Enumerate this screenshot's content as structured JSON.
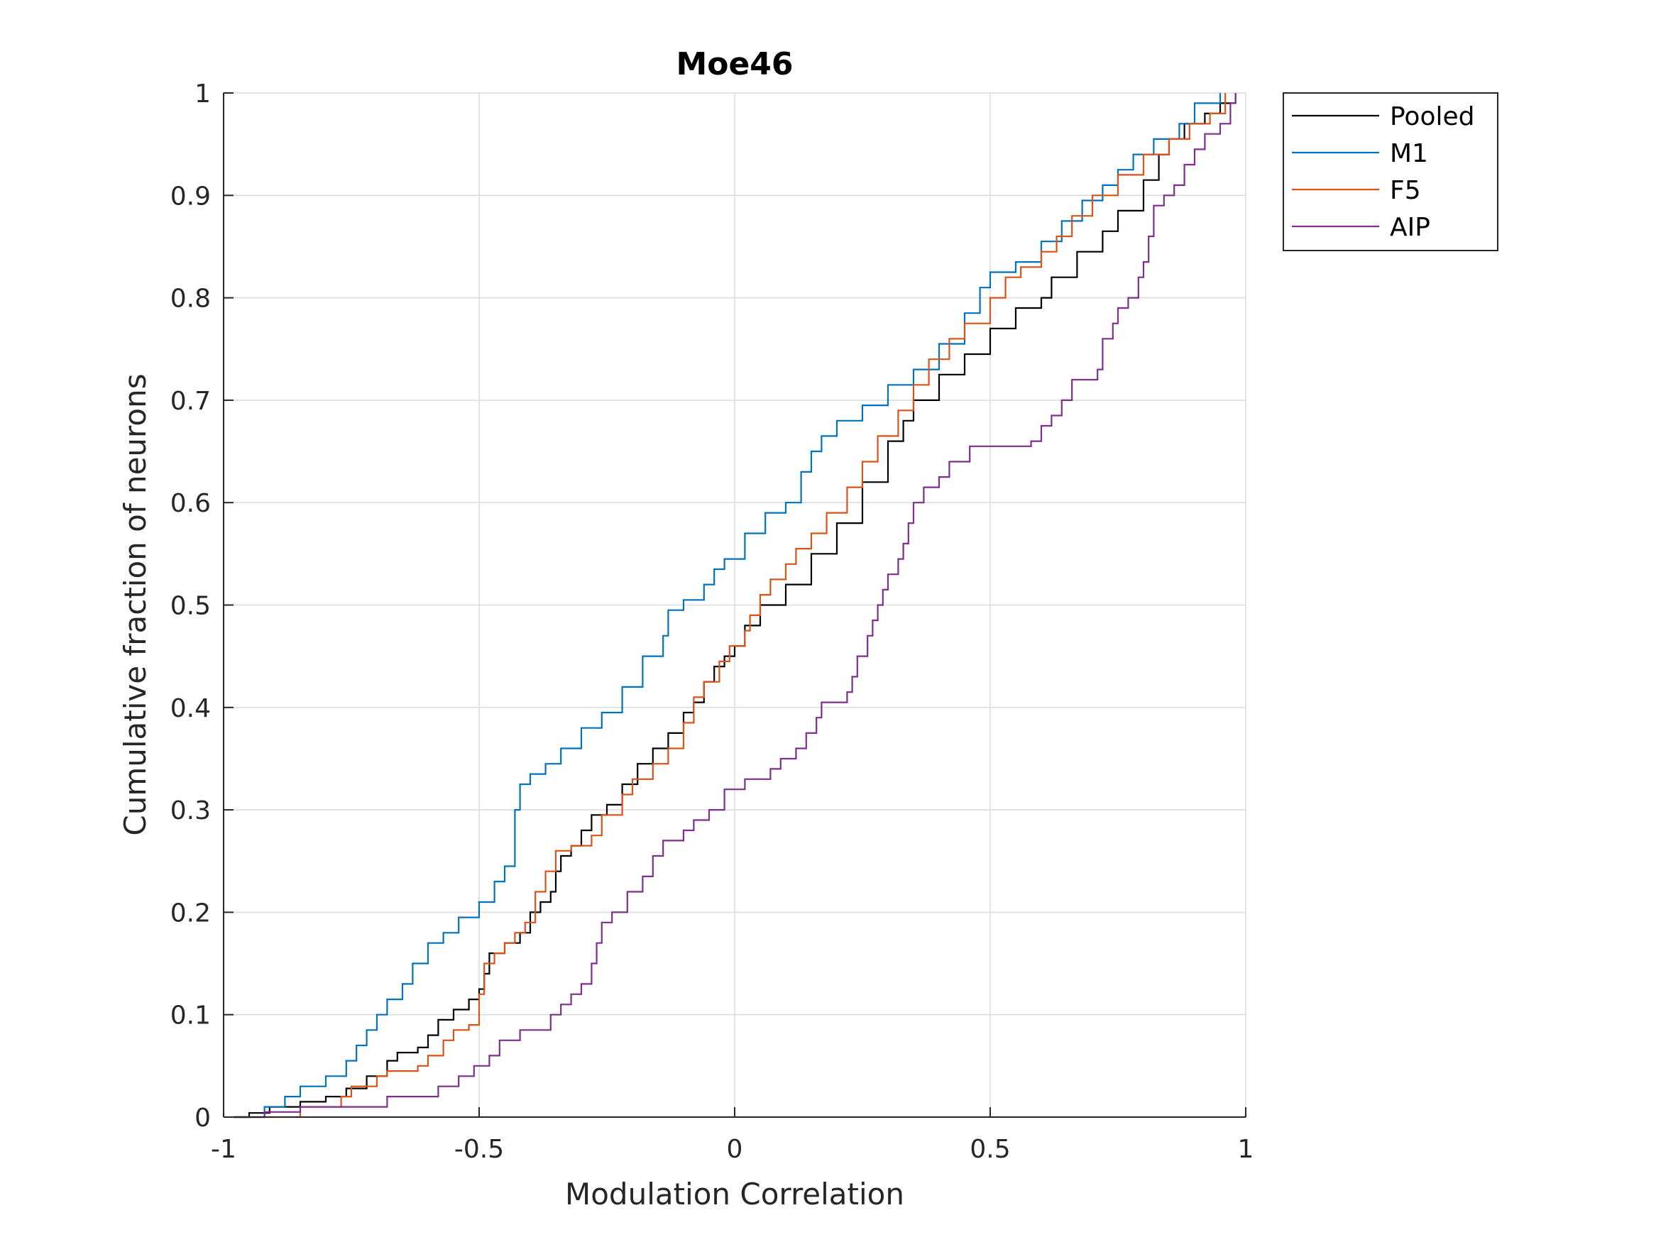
{
  "chart_data": {
    "type": "line",
    "step": true,
    "title": "Moe46",
    "xlabel": "Modulation Correlation",
    "ylabel": "Cumulative fraction of neurons",
    "xlim": [
      -1,
      1
    ],
    "ylim": [
      0,
      1
    ],
    "xticks": [
      "-1",
      "-0.5",
      "0",
      "0.5",
      "1"
    ],
    "yticks": [
      "0",
      "0.1",
      "0.2",
      "0.3",
      "0.4",
      "0.5",
      "0.6",
      "0.7",
      "0.8",
      "0.9",
      "1"
    ],
    "grid": true,
    "legend": "outside-top-right",
    "series": [
      {
        "name": "Pooled",
        "color": "#000000",
        "points": [
          [
            -0.98,
            0
          ],
          [
            -0.95,
            0.004
          ],
          [
            -0.91,
            0.01
          ],
          [
            -0.85,
            0.015
          ],
          [
            -0.8,
            0.02
          ],
          [
            -0.76,
            0.028
          ],
          [
            -0.72,
            0.04
          ],
          [
            -0.68,
            0.055
          ],
          [
            -0.66,
            0.063
          ],
          [
            -0.62,
            0.068
          ],
          [
            -0.6,
            0.08
          ],
          [
            -0.58,
            0.095
          ],
          [
            -0.55,
            0.105
          ],
          [
            -0.52,
            0.115
          ],
          [
            -0.5,
            0.125
          ],
          [
            -0.49,
            0.14
          ],
          [
            -0.48,
            0.16
          ],
          [
            -0.45,
            0.17
          ],
          [
            -0.42,
            0.18
          ],
          [
            -0.4,
            0.2
          ],
          [
            -0.38,
            0.21
          ],
          [
            -0.36,
            0.22
          ],
          [
            -0.35,
            0.24
          ],
          [
            -0.34,
            0.255
          ],
          [
            -0.32,
            0.265
          ],
          [
            -0.3,
            0.28
          ],
          [
            -0.28,
            0.295
          ],
          [
            -0.25,
            0.305
          ],
          [
            -0.22,
            0.325
          ],
          [
            -0.19,
            0.345
          ],
          [
            -0.16,
            0.36
          ],
          [
            -0.13,
            0.375
          ],
          [
            -0.1,
            0.395
          ],
          [
            -0.08,
            0.405
          ],
          [
            -0.06,
            0.425
          ],
          [
            -0.04,
            0.44
          ],
          [
            -0.02,
            0.45
          ],
          [
            0.0,
            0.46
          ],
          [
            0.02,
            0.48
          ],
          [
            0.05,
            0.5
          ],
          [
            0.1,
            0.52
          ],
          [
            0.15,
            0.55
          ],
          [
            0.2,
            0.58
          ],
          [
            0.25,
            0.62
          ],
          [
            0.3,
            0.66
          ],
          [
            0.33,
            0.68
          ],
          [
            0.35,
            0.7
          ],
          [
            0.4,
            0.725
          ],
          [
            0.45,
            0.745
          ],
          [
            0.5,
            0.77
          ],
          [
            0.55,
            0.79
          ],
          [
            0.6,
            0.8
          ],
          [
            0.62,
            0.82
          ],
          [
            0.67,
            0.845
          ],
          [
            0.72,
            0.865
          ],
          [
            0.75,
            0.885
          ],
          [
            0.8,
            0.915
          ],
          [
            0.83,
            0.94
          ],
          [
            0.85,
            0.955
          ],
          [
            0.88,
            0.97
          ],
          [
            0.92,
            0.98
          ],
          [
            0.95,
            0.99
          ],
          [
            0.98,
            1.0
          ]
        ]
      },
      {
        "name": "M1",
        "color": "#0072BD",
        "points": [
          [
            -0.98,
            0
          ],
          [
            -0.92,
            0.01
          ],
          [
            -0.88,
            0.02
          ],
          [
            -0.85,
            0.03
          ],
          [
            -0.8,
            0.04
          ],
          [
            -0.76,
            0.055
          ],
          [
            -0.74,
            0.07
          ],
          [
            -0.72,
            0.085
          ],
          [
            -0.7,
            0.1
          ],
          [
            -0.68,
            0.115
          ],
          [
            -0.65,
            0.13
          ],
          [
            -0.63,
            0.15
          ],
          [
            -0.6,
            0.17
          ],
          [
            -0.57,
            0.18
          ],
          [
            -0.54,
            0.195
          ],
          [
            -0.5,
            0.21
          ],
          [
            -0.47,
            0.23
          ],
          [
            -0.45,
            0.245
          ],
          [
            -0.43,
            0.3
          ],
          [
            -0.42,
            0.325
          ],
          [
            -0.4,
            0.335
          ],
          [
            -0.37,
            0.345
          ],
          [
            -0.34,
            0.36
          ],
          [
            -0.3,
            0.38
          ],
          [
            -0.26,
            0.395
          ],
          [
            -0.22,
            0.42
          ],
          [
            -0.18,
            0.45
          ],
          [
            -0.14,
            0.47
          ],
          [
            -0.13,
            0.495
          ],
          [
            -0.1,
            0.505
          ],
          [
            -0.06,
            0.52
          ],
          [
            -0.04,
            0.535
          ],
          [
            -0.02,
            0.545
          ],
          [
            0.02,
            0.57
          ],
          [
            0.06,
            0.59
          ],
          [
            0.1,
            0.6
          ],
          [
            0.13,
            0.63
          ],
          [
            0.15,
            0.65
          ],
          [
            0.17,
            0.665
          ],
          [
            0.2,
            0.68
          ],
          [
            0.25,
            0.695
          ],
          [
            0.3,
            0.715
          ],
          [
            0.35,
            0.73
          ],
          [
            0.4,
            0.755
          ],
          [
            0.45,
            0.785
          ],
          [
            0.48,
            0.81
          ],
          [
            0.5,
            0.825
          ],
          [
            0.55,
            0.835
          ],
          [
            0.6,
            0.855
          ],
          [
            0.64,
            0.875
          ],
          [
            0.68,
            0.895
          ],
          [
            0.72,
            0.91
          ],
          [
            0.75,
            0.925
          ],
          [
            0.78,
            0.94
          ],
          [
            0.82,
            0.955
          ],
          [
            0.87,
            0.97
          ],
          [
            0.9,
            0.99
          ],
          [
            0.95,
            1.0
          ]
        ]
      },
      {
        "name": "F5",
        "color": "#D95319",
        "points": [
          [
            -0.98,
            0
          ],
          [
            -0.85,
            0.01
          ],
          [
            -0.77,
            0.02
          ],
          [
            -0.75,
            0.03
          ],
          [
            -0.7,
            0.04
          ],
          [
            -0.68,
            0.045
          ],
          [
            -0.62,
            0.05
          ],
          [
            -0.6,
            0.06
          ],
          [
            -0.57,
            0.075
          ],
          [
            -0.55,
            0.085
          ],
          [
            -0.52,
            0.09
          ],
          [
            -0.5,
            0.12
          ],
          [
            -0.49,
            0.15
          ],
          [
            -0.47,
            0.16
          ],
          [
            -0.45,
            0.17
          ],
          [
            -0.43,
            0.18
          ],
          [
            -0.41,
            0.19
          ],
          [
            -0.39,
            0.22
          ],
          [
            -0.37,
            0.24
          ],
          [
            -0.35,
            0.26
          ],
          [
            -0.32,
            0.265
          ],
          [
            -0.28,
            0.275
          ],
          [
            -0.26,
            0.295
          ],
          [
            -0.22,
            0.315
          ],
          [
            -0.2,
            0.33
          ],
          [
            -0.16,
            0.345
          ],
          [
            -0.13,
            0.36
          ],
          [
            -0.1,
            0.385
          ],
          [
            -0.08,
            0.41
          ],
          [
            -0.06,
            0.425
          ],
          [
            -0.03,
            0.445
          ],
          [
            -0.01,
            0.46
          ],
          [
            0.02,
            0.475
          ],
          [
            0.03,
            0.49
          ],
          [
            0.05,
            0.51
          ],
          [
            0.07,
            0.525
          ],
          [
            0.1,
            0.54
          ],
          [
            0.12,
            0.555
          ],
          [
            0.15,
            0.57
          ],
          [
            0.18,
            0.59
          ],
          [
            0.22,
            0.615
          ],
          [
            0.25,
            0.64
          ],
          [
            0.28,
            0.665
          ],
          [
            0.32,
            0.69
          ],
          [
            0.35,
            0.715
          ],
          [
            0.38,
            0.74
          ],
          [
            0.42,
            0.76
          ],
          [
            0.45,
            0.775
          ],
          [
            0.5,
            0.8
          ],
          [
            0.53,
            0.82
          ],
          [
            0.56,
            0.83
          ],
          [
            0.6,
            0.845
          ],
          [
            0.63,
            0.86
          ],
          [
            0.66,
            0.88
          ],
          [
            0.7,
            0.9
          ],
          [
            0.75,
            0.92
          ],
          [
            0.8,
            0.94
          ],
          [
            0.85,
            0.955
          ],
          [
            0.89,
            0.97
          ],
          [
            0.93,
            0.98
          ],
          [
            0.96,
            1.0
          ]
        ]
      },
      {
        "name": "AIP",
        "color": "#7E2F8E",
        "points": [
          [
            -0.98,
            0
          ],
          [
            -0.92,
            0.005
          ],
          [
            -0.85,
            0.01
          ],
          [
            -0.7,
            0.01
          ],
          [
            -0.68,
            0.02
          ],
          [
            -0.6,
            0.02
          ],
          [
            -0.58,
            0.03
          ],
          [
            -0.54,
            0.04
          ],
          [
            -0.51,
            0.05
          ],
          [
            -0.48,
            0.06
          ],
          [
            -0.46,
            0.075
          ],
          [
            -0.42,
            0.085
          ],
          [
            -0.36,
            0.1
          ],
          [
            -0.34,
            0.11
          ],
          [
            -0.32,
            0.12
          ],
          [
            -0.3,
            0.13
          ],
          [
            -0.28,
            0.15
          ],
          [
            -0.27,
            0.17
          ],
          [
            -0.26,
            0.19
          ],
          [
            -0.24,
            0.2
          ],
          [
            -0.21,
            0.22
          ],
          [
            -0.18,
            0.235
          ],
          [
            -0.16,
            0.255
          ],
          [
            -0.14,
            0.27
          ],
          [
            -0.1,
            0.28
          ],
          [
            -0.08,
            0.29
          ],
          [
            -0.05,
            0.3
          ],
          [
            -0.02,
            0.32
          ],
          [
            0.02,
            0.33
          ],
          [
            0.07,
            0.34
          ],
          [
            0.09,
            0.35
          ],
          [
            0.12,
            0.36
          ],
          [
            0.14,
            0.375
          ],
          [
            0.16,
            0.39
          ],
          [
            0.17,
            0.405
          ],
          [
            0.22,
            0.415
          ],
          [
            0.23,
            0.43
          ],
          [
            0.24,
            0.45
          ],
          [
            0.26,
            0.47
          ],
          [
            0.27,
            0.485
          ],
          [
            0.28,
            0.5
          ],
          [
            0.29,
            0.515
          ],
          [
            0.3,
            0.53
          ],
          [
            0.32,
            0.545
          ],
          [
            0.33,
            0.56
          ],
          [
            0.34,
            0.58
          ],
          [
            0.35,
            0.6
          ],
          [
            0.37,
            0.615
          ],
          [
            0.4,
            0.625
          ],
          [
            0.42,
            0.64
          ],
          [
            0.46,
            0.655
          ],
          [
            0.58,
            0.66
          ],
          [
            0.6,
            0.675
          ],
          [
            0.62,
            0.685
          ],
          [
            0.64,
            0.7
          ],
          [
            0.66,
            0.72
          ],
          [
            0.71,
            0.73
          ],
          [
            0.72,
            0.76
          ],
          [
            0.74,
            0.775
          ],
          [
            0.75,
            0.79
          ],
          [
            0.77,
            0.8
          ],
          [
            0.79,
            0.82
          ],
          [
            0.8,
            0.835
          ],
          [
            0.81,
            0.86
          ],
          [
            0.82,
            0.89
          ],
          [
            0.84,
            0.9
          ],
          [
            0.86,
            0.91
          ],
          [
            0.88,
            0.93
          ],
          [
            0.9,
            0.945
          ],
          [
            0.92,
            0.96
          ],
          [
            0.95,
            0.97
          ],
          [
            0.97,
            0.99
          ],
          [
            0.98,
            1.0
          ]
        ]
      }
    ]
  }
}
